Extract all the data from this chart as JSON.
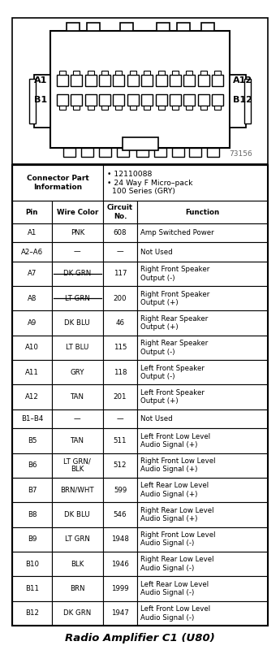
{
  "title": "Radio Amplifier C1 (U80)",
  "connector_part_info_left": "Connector Part\nInformation",
  "connector_part_info_right": "• 12110088\n• 24 Way F Micro–pack\n  100 Series (GRY)",
  "watermark": "73156",
  "col_headers": [
    "Pin",
    "Wire Color",
    "Circuit\nNo.",
    "Function"
  ],
  "rows": [
    [
      "A1",
      "PNK",
      "608",
      "Amp Switched Power"
    ],
    [
      "A2–A6",
      "—",
      "—",
      "Not Used"
    ],
    [
      "A7",
      "DK GRN",
      "117",
      "Right Front Speaker\nOutput (-)"
    ],
    [
      "A8",
      "LT GRN",
      "200",
      "Right Front Speaker\nOutput (+)"
    ],
    [
      "A9",
      "DK BLU",
      "46",
      "Right Rear Speaker\nOutput (+)"
    ],
    [
      "A10",
      "LT BLU",
      "115",
      "Right Rear Speaker\nOutput (-)"
    ],
    [
      "A11",
      "GRY",
      "118",
      "Left Front Speaker\nOutput (-)"
    ],
    [
      "A12",
      "TAN",
      "201",
      "Left Front Speaker\nOutput (+)"
    ],
    [
      "B1–B4",
      "—",
      "—",
      "Not Used"
    ],
    [
      "B5",
      "TAN",
      "511",
      "Left Front Low Level\nAudio Signal (+)"
    ],
    [
      "B6",
      "LT GRN/\nBLK",
      "512",
      "Right Front Low Level\nAudio Signal (+)"
    ],
    [
      "B7",
      "BRN/WHT",
      "599",
      "Left Rear Low Level\nAudio Signal (+)"
    ],
    [
      "B8",
      "DK BLU",
      "546",
      "Right Rear Low Level\nAudio Signal (+)"
    ],
    [
      "B9",
      "LT GRN",
      "1948",
      "Right Front Low Level\nAudio Signal (-)"
    ],
    [
      "B10",
      "BLK",
      "1946",
      "Right Rear Low Level\nAudio Signal (-)"
    ],
    [
      "B11",
      "BRN",
      "1999",
      "Left Rear Low Level\nAudio Signal (-)"
    ],
    [
      "B12",
      "DK GRN",
      "1947",
      "Left Front Low Level\nAudio Signal (-)"
    ]
  ],
  "strikethrough_rows": [
    2,
    3
  ],
  "bg_color": "#ffffff",
  "border_color": "#000000",
  "text_color": "#000000",
  "font_size": 6.2,
  "header_font_size": 7.0,
  "title_font_size": 9.5
}
